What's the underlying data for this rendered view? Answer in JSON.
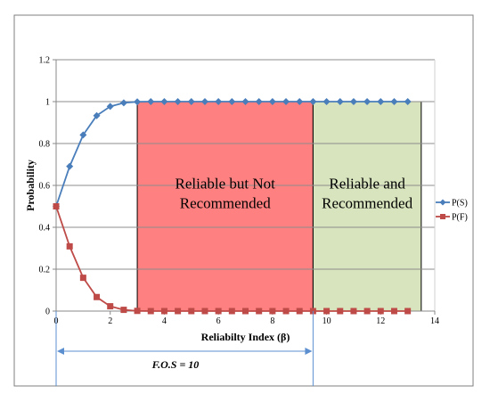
{
  "chart_data": {
    "type": "line",
    "title": "",
    "xlabel": "Reliabilty Index (β)",
    "ylabel": "Probability",
    "xlim": [
      0,
      14
    ],
    "ylim": [
      0,
      1.2
    ],
    "x_ticks": [
      0,
      2,
      4,
      6,
      8,
      10,
      12,
      14
    ],
    "y_ticks": [
      0,
      0.2,
      0.4,
      0.6,
      0.8,
      1,
      1.2
    ],
    "x_tick_labels": [
      "0",
      "2",
      "4",
      "6",
      "8",
      "10",
      "12",
      "14"
    ],
    "y_tick_labels": [
      "0",
      "0.2",
      "0.4",
      "0.6",
      "0.8",
      "1",
      "1.2"
    ],
    "grid": "horizontal",
    "legend_position": "right",
    "x": [
      0,
      0.5,
      1,
      1.5,
      2,
      2.5,
      3,
      3.5,
      4,
      4.5,
      5,
      5.5,
      6,
      6.5,
      7,
      7.5,
      8,
      8.5,
      9,
      9.5,
      10,
      10.5,
      11,
      11.5,
      12,
      12.5,
      13
    ],
    "series": [
      {
        "name": "P(S)",
        "color": "#4a7ebb",
        "marker": "diamond",
        "values": [
          0.5,
          0.691,
          0.841,
          0.933,
          0.977,
          0.994,
          0.999,
          1,
          1,
          1,
          1,
          1,
          1,
          1,
          1,
          1,
          1,
          1,
          1,
          1,
          1,
          1,
          1,
          1,
          1,
          1,
          1
        ]
      },
      {
        "name": "P(F)",
        "color": "#be4b48",
        "marker": "square",
        "values": [
          0.5,
          0.309,
          0.159,
          0.067,
          0.023,
          0.006,
          0.001,
          0,
          0,
          0,
          0,
          0,
          0,
          0,
          0,
          0,
          0,
          0,
          0,
          0,
          0,
          0,
          0,
          0,
          0,
          0,
          0
        ]
      }
    ],
    "regions": [
      {
        "label_lines": [
          "Reliable but Not",
          "Recommended"
        ],
        "x_range": [
          3,
          9.5
        ],
        "y_range": [
          0,
          1
        ],
        "color": "#ff8080"
      },
      {
        "label_lines": [
          "Reliable and",
          "Recommended"
        ],
        "x_range": [
          9.5,
          13.5
        ],
        "y_range": [
          0,
          1
        ],
        "color": "#d7e4bd"
      }
    ],
    "annotation": {
      "text": "F.O.S = 10",
      "x_from": 0,
      "x_to": 9.5
    }
  }
}
